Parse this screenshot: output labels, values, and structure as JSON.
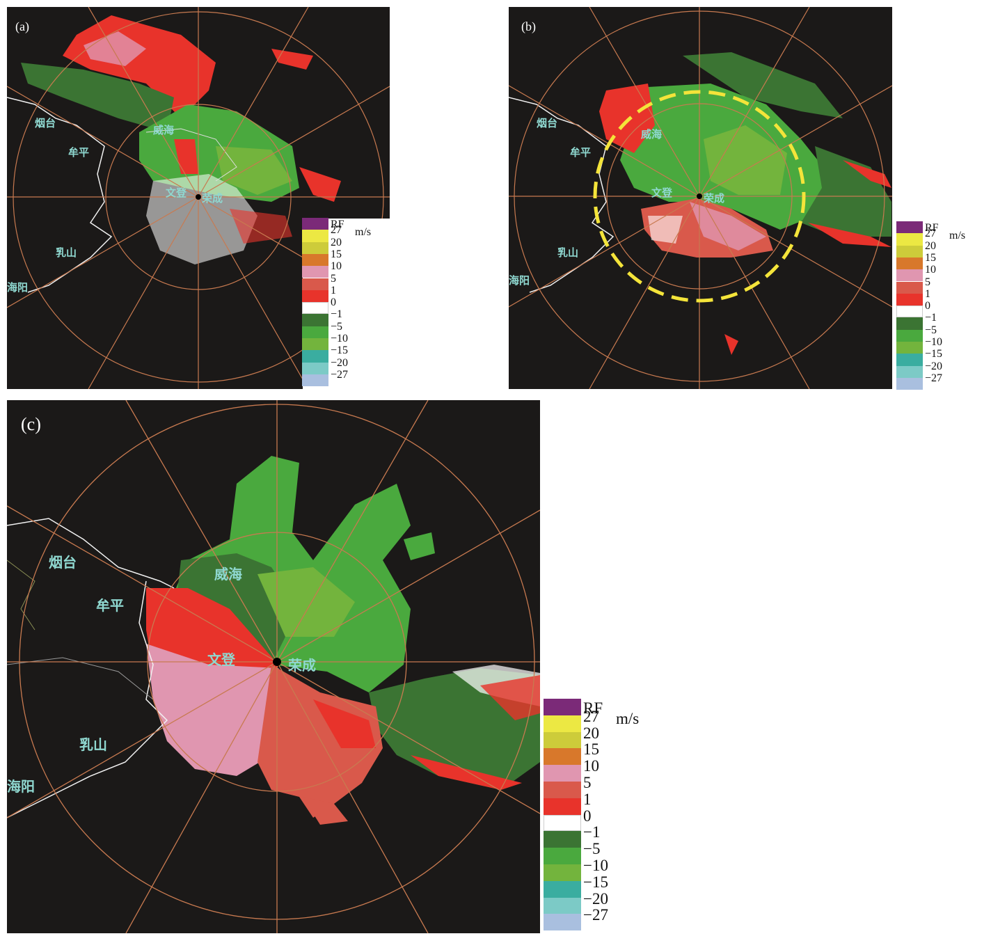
{
  "panels": [
    {
      "id": "a",
      "label": "(a)",
      "cities": [
        "烟台",
        "牟平",
        "威海",
        "文登",
        "荣成",
        "乳山",
        "海阳"
      ]
    },
    {
      "id": "b",
      "label": "(b)",
      "cities": [
        "烟台",
        "牟平",
        "威海",
        "文登",
        "荣成",
        "乳山",
        "海阳"
      ]
    },
    {
      "id": "c",
      "label": "(c)",
      "cities": [
        "烟台",
        "牟平",
        "威海",
        "文登",
        "荣成",
        "乳山",
        "海阳"
      ]
    }
  ],
  "legend": {
    "unit": "m/s",
    "entries": [
      {
        "label": "RF",
        "color": "#7b2a78"
      },
      {
        "label": "27",
        "color": "#ece843"
      },
      {
        "label": "20",
        "color": "#cdcc3a"
      },
      {
        "label": "15",
        "color": "#d8782b"
      },
      {
        "label": "10",
        "color": "#e096b0"
      },
      {
        "label": "5",
        "color": "#d9594b"
      },
      {
        "label": "1",
        "color": "#e8332b"
      },
      {
        "label": "0",
        "color": "#ffffff"
      },
      {
        "label": "−1",
        "color": "#3b7433"
      },
      {
        "label": "−5",
        "color": "#4aa93e"
      },
      {
        "label": "−10",
        "color": "#73b43d"
      },
      {
        "label": "−15",
        "color": "#3aada0"
      },
      {
        "label": "−20",
        "color": "#7ccac6"
      },
      {
        "label": "−27",
        "color": "#a9bfdf"
      }
    ]
  },
  "colors": {
    "background": "#1b1918",
    "rings": "#c87a50",
    "highlight_circle": "#f4e43a"
  }
}
